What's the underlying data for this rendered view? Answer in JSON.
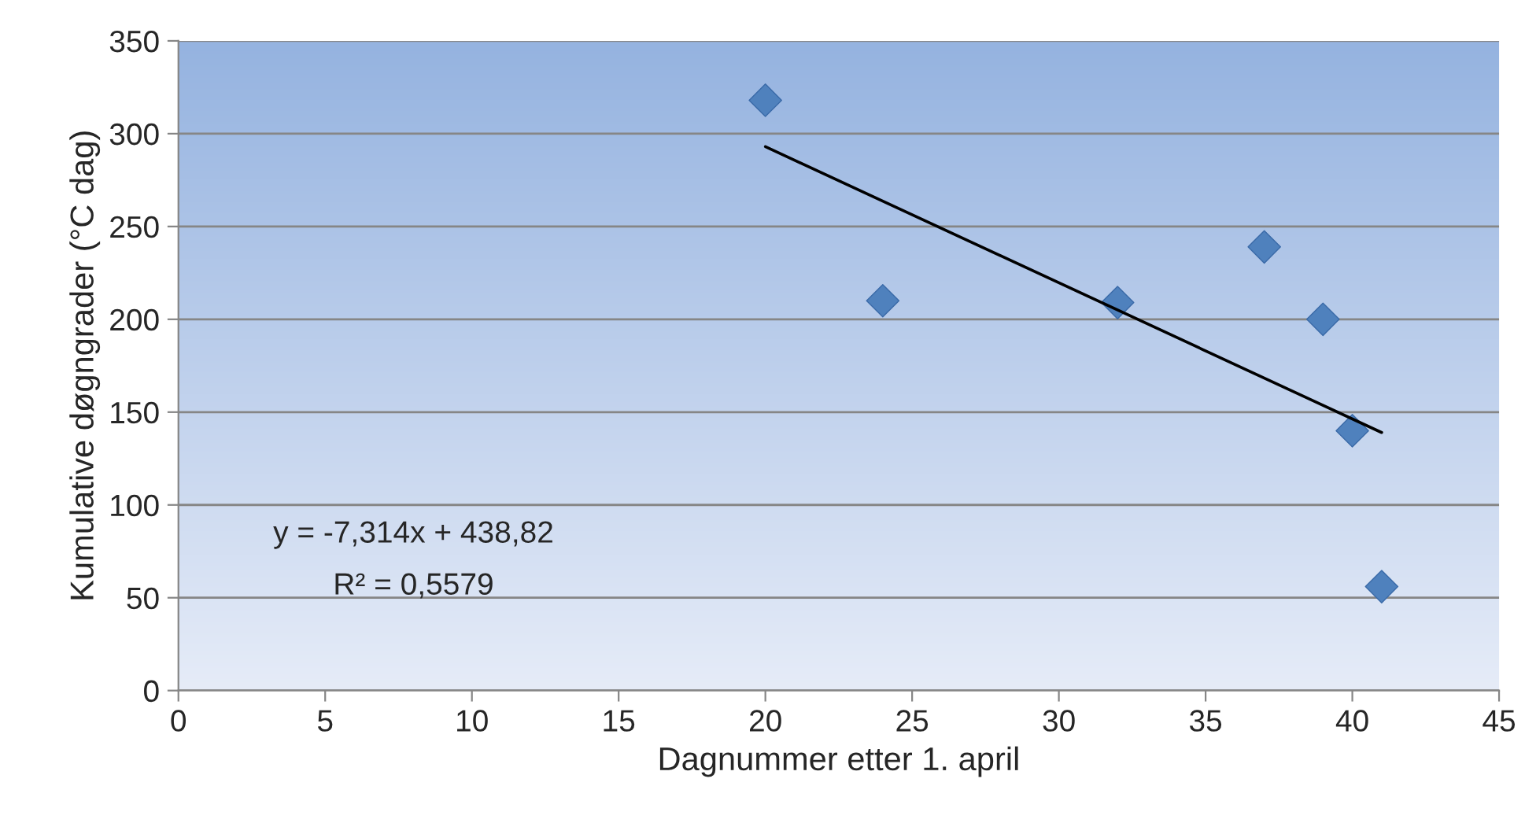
{
  "chart_data": {
    "type": "scatter",
    "xlabel": "Dagnummer etter 1. april",
    "ylabel": "Kumulative døgngrader (°C dag)",
    "series": [
      {
        "color": "#4f81bd",
        "marker": "diamond",
        "x": [
          20,
          24,
          32,
          37,
          39,
          40,
          41
        ],
        "values": [
          318,
          210,
          209,
          239,
          200,
          140,
          56
        ]
      },
      {
        "type": "line",
        "color": "#000000",
        "marker": "none",
        "line_style": "solid",
        "x": [
          20,
          41
        ],
        "values": [
          293,
          139
        ]
      }
    ],
    "xlim": [
      0,
      45
    ],
    "xticks": [
      0,
      5,
      10,
      15,
      20,
      25,
      30,
      35,
      40,
      45
    ],
    "ylim": [
      0,
      350
    ],
    "yticks": [
      0,
      50,
      100,
      150,
      200,
      250,
      300,
      350
    ],
    "grid": "y",
    "legend": false,
    "annotations": [
      "y = -7,314x + 438,82",
      "R² = 0,5579"
    ]
  }
}
